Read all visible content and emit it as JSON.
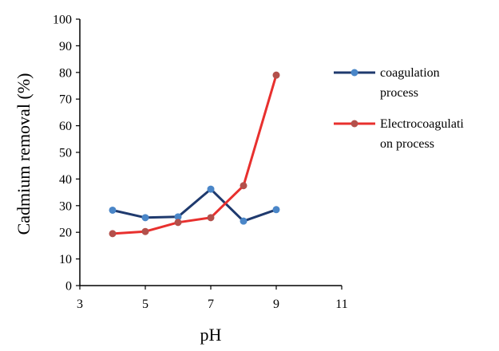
{
  "chart_data": {
    "type": "line",
    "title": "",
    "xlabel": "pH",
    "ylabel": "Cadmium removal (%)",
    "xlim": [
      3,
      11
    ],
    "ylim": [
      0,
      100
    ],
    "xticks": [
      "3",
      "5",
      "7",
      "9",
      "11"
    ],
    "yticks": [
      "0",
      "10",
      "20",
      "30",
      "40",
      "50",
      "60",
      "70",
      "80",
      "90",
      "100"
    ],
    "grid": false,
    "legend_position": "right",
    "series": [
      {
        "name": " coagulation process",
        "legend_lines": [
          " coagulation",
          "process"
        ],
        "color": "#1f3a6e",
        "marker_color": "#4a86c8",
        "x": [
          4,
          5,
          6,
          7,
          8,
          9
        ],
        "y": [
          28.3,
          25.5,
          25.8,
          36.2,
          24.2,
          28.5
        ]
      },
      {
        "name": "Electrocoagulation process",
        "legend_lines": [
          "Electrocoagulati",
          "on process"
        ],
        "color": "#e8302e",
        "marker_color": "#b3504b",
        "x": [
          4,
          5,
          6,
          7,
          8,
          9
        ],
        "y": [
          19.5,
          20.3,
          23.7,
          25.5,
          37.5,
          79.0
        ]
      }
    ]
  }
}
